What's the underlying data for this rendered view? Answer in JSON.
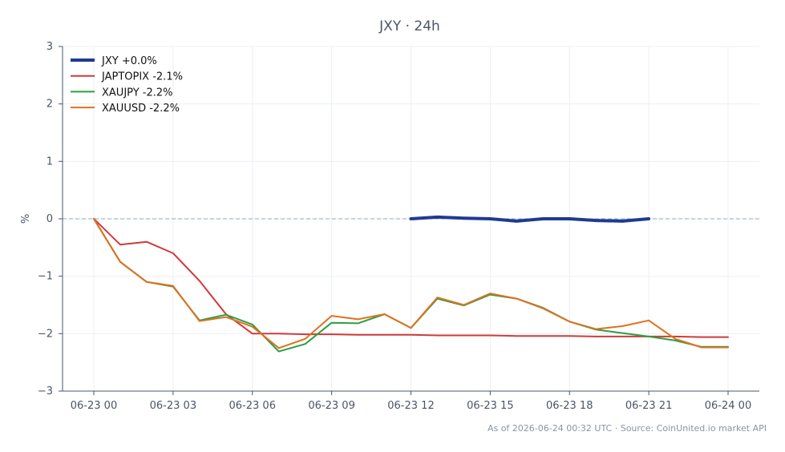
{
  "chart_data": {
    "type": "line",
    "title": "JXY · 24h",
    "xlabel": "",
    "ylabel": "%",
    "x_ticks": [
      "06-23 00",
      "06-23 03",
      "06-23 06",
      "06-23 09",
      "06-23 12",
      "06-23 15",
      "06-23 18",
      "06-23 21",
      "06-24 00"
    ],
    "xlim": [
      0,
      25
    ],
    "ylim": [
      -3,
      3
    ],
    "y_ticks": [
      3,
      2,
      1,
      0,
      -1,
      -2,
      -3
    ],
    "y_tick_labels": [
      "3",
      "2",
      "1",
      "0",
      "−1",
      "−2",
      "−3"
    ],
    "grid": true,
    "legend_position": "top-left",
    "footer": "As of 2026-06-24 00:32 UTC · Source: CoinUnited.io market API",
    "series": [
      {
        "name": "JXY +0.0%",
        "color": "#1f3a93",
        "x": [
          12,
          13,
          14,
          15,
          16,
          17,
          18,
          19,
          20,
          21
        ],
        "values": [
          0.0,
          0.03,
          0.01,
          0.0,
          -0.04,
          0.0,
          0.0,
          -0.03,
          -0.04,
          0.0
        ]
      },
      {
        "name": "JAPTOPIX -2.1%",
        "color": "#d03a3a",
        "x": [
          0,
          1,
          2,
          3,
          4,
          5,
          6,
          7,
          8,
          9,
          10,
          11,
          12,
          13,
          14,
          15,
          16,
          17,
          18,
          19,
          20,
          21,
          22,
          23,
          24
        ],
        "values": [
          0.0,
          -0.45,
          -0.4,
          -0.6,
          -1.08,
          -1.66,
          -2.0,
          -2.0,
          -2.01,
          -2.01,
          -2.02,
          -2.02,
          -2.02,
          -2.03,
          -2.03,
          -2.03,
          -2.04,
          -2.04,
          -2.04,
          -2.05,
          -2.05,
          -2.05,
          -2.05,
          -2.06,
          -2.06
        ]
      },
      {
        "name": "XAUJPY -2.2%",
        "color": "#2aa040",
        "x": [
          0,
          1,
          2,
          3,
          4,
          5,
          6,
          7,
          8,
          9,
          10,
          11,
          12,
          13,
          14,
          15,
          16,
          17,
          18,
          19,
          20,
          21,
          22,
          23,
          24
        ],
        "values": [
          0.0,
          -0.75,
          -1.1,
          -1.18,
          -1.77,
          -1.67,
          -1.84,
          -2.31,
          -2.18,
          -1.81,
          -1.82,
          -1.66,
          -1.9,
          -1.39,
          -1.51,
          -1.32,
          -1.39,
          -1.55,
          -1.79,
          -1.93,
          -1.99,
          -2.05,
          -2.12,
          -2.23,
          -2.23
        ]
      },
      {
        "name": "XAUUSD -2.2%",
        "color": "#e07020",
        "x": [
          0,
          1,
          2,
          3,
          4,
          5,
          6,
          7,
          8,
          9,
          10,
          11,
          12,
          13,
          14,
          15,
          16,
          17,
          18,
          19,
          20,
          21,
          22,
          23,
          24
        ],
        "values": [
          0.0,
          -0.75,
          -1.1,
          -1.17,
          -1.78,
          -1.71,
          -1.88,
          -2.25,
          -2.09,
          -1.69,
          -1.75,
          -1.66,
          -1.9,
          -1.37,
          -1.5,
          -1.3,
          -1.39,
          -1.56,
          -1.79,
          -1.92,
          -1.87,
          -1.77,
          -2.09,
          -2.24,
          -2.24
        ]
      }
    ]
  }
}
